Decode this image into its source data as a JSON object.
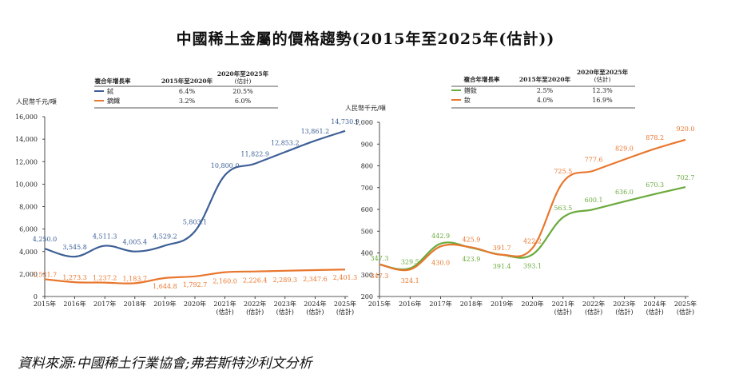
{
  "title": "中國稀土金屬的價格趨勢(2015年至2025年(估計))",
  "source": "資料來源:中國稀土行業協會;弗若斯特沙利文分析",
  "legend_headers": {
    "col1": "複合年增長率",
    "col2": "2015年至2020年",
    "col3_line1": "2020年至2025年",
    "col3_line2": "(估計)"
  },
  "chart_data": [
    {
      "type": "line",
      "ylabel": "人民幣千元/噸",
      "ylim": [
        0,
        16000
      ],
      "yticks": [
        "0",
        "2,000",
        "4,000",
        "6,000",
        "8,000",
        "10,000",
        "12,000",
        "14,000",
        "16,000"
      ],
      "ytick_values": [
        0,
        2000,
        4000,
        6000,
        8000,
        10000,
        12000,
        14000,
        16000
      ],
      "categories": [
        "2015年",
        "2016年",
        "2017年",
        "2018年",
        "2019年",
        "2020年",
        "2021年",
        "2022年",
        "2023年",
        "2024年",
        "2025年"
      ],
      "category_sub": [
        "",
        "",
        "",
        "",
        "",
        "",
        "(估計)",
        "(估計)",
        "(估計)",
        "(估計)",
        "(估計)"
      ],
      "series": [
        {
          "name": "鋱",
          "color": "#3d5f96",
          "cagr_2015_2020": "6.4%",
          "cagr_2020_2025": "20.5%",
          "values": [
            4250.0,
            3545.8,
            4511.3,
            4005.4,
            4529.2,
            5803.1,
            10800.0,
            11822.9,
            12853.2,
            13861.2,
            14730.9
          ],
          "labels": [
            "4,250.0",
            "3,545.8",
            "4,511.3",
            "4,005.4",
            "4,529.2",
            "5,803.1",
            "10,800.0",
            "11,822.9",
            "12,853.2",
            "13,861.2",
            "14,730.9"
          ]
        },
        {
          "name": "鏑鐵",
          "color": "#e8772e",
          "cagr_2015_2020": "3.2%",
          "cagr_2020_2025": "6.0%",
          "values": [
            1531.7,
            1273.3,
            1237.2,
            1183.7,
            1644.8,
            1792.7,
            2160.0,
            2226.4,
            2289.3,
            2347.6,
            2401.3
          ],
          "labels": [
            "1,531.7",
            "1,273.3",
            "1,237.2",
            "1,183.7",
            "1,644.8",
            "1,792.7",
            "2,160.0",
            "2,226.4",
            "2,289.3",
            "2,347.6",
            "2,401.3"
          ]
        }
      ]
    },
    {
      "type": "line",
      "ylabel": "人民幣千元/噸",
      "ylim": [
        200,
        1000
      ],
      "yticks": [
        "200",
        "300",
        "400",
        "500",
        "600",
        "700",
        "800",
        "900",
        "1,000"
      ],
      "ytick_values": [
        200,
        300,
        400,
        500,
        600,
        700,
        800,
        900,
        1000
      ],
      "categories": [
        "2015年",
        "2016年",
        "2017年",
        "2018年",
        "2019年",
        "2020年",
        "2021年",
        "2022年",
        "2023年",
        "2024年",
        "2025年"
      ],
      "category_sub": [
        "",
        "",
        "",
        "",
        "",
        "",
        "(估計)",
        "(估計)",
        "(估計)",
        "(估計)",
        "(估計)"
      ],
      "series": [
        {
          "name": "鐠釹",
          "color": "#6aaa3c",
          "cagr_2015_2020": "2.5%",
          "cagr_2020_2025": "12.3%",
          "values": [
            347.3,
            329.5,
            442.9,
            423.9,
            391.4,
            393.1,
            563.5,
            600.1,
            636.0,
            670.3,
            702.7
          ],
          "labels": [
            "347.3",
            "329.5",
            "442.9",
            "423.9",
            "391.4",
            "393.1",
            "563.5",
            "600.1",
            "636.0",
            "670.3",
            "702.7"
          ]
        },
        {
          "name": "釹",
          "color": "#e8772e",
          "cagr_2015_2020": "4.0%",
          "cagr_2020_2025": "16.9%",
          "values": [
            347.3,
            324.1,
            430.0,
            425.9,
            391.7,
            422.2,
            725.5,
            777.6,
            829.0,
            878.2,
            920.0
          ],
          "labels": [
            "347.3",
            "324.1",
            "430.0",
            "425.9",
            "391.7",
            "422.2",
            "725.5",
            "777.6",
            "829.0",
            "878.2",
            "920.0"
          ]
        }
      ]
    }
  ]
}
